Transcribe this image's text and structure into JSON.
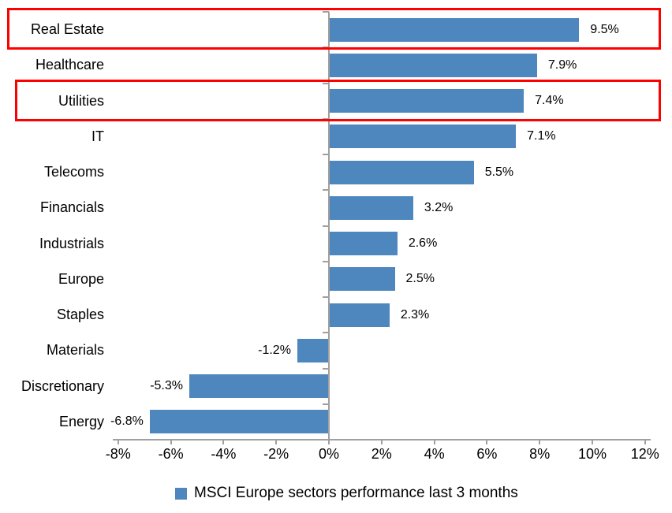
{
  "chart_data": {
    "type": "bar",
    "orientation": "horizontal",
    "categories": [
      "Real Estate",
      "Healthcare",
      "Utilities",
      "IT",
      "Telecoms",
      "Financials",
      "Industrials",
      "Europe",
      "Staples",
      "Materials",
      "Discretionary",
      "Energy"
    ],
    "values": [
      9.5,
      7.9,
      7.4,
      7.1,
      5.5,
      3.2,
      2.6,
      2.5,
      2.3,
      -1.2,
      -5.3,
      -6.8
    ],
    "data_labels": [
      "9.5%",
      "7.9%",
      "7.4%",
      "7.1%",
      "5.5%",
      "3.2%",
      "2.6%",
      "2.5%",
      "2.3%",
      "-1.2%",
      "-5.3%",
      "-6.8%"
    ],
    "x_axis": {
      "min": -8,
      "max": 12,
      "tick_step": 2,
      "tick_labels": [
        "-8%",
        "-6%",
        "-4%",
        "-2%",
        "0%",
        "2%",
        "4%",
        "6%",
        "8%",
        "10%",
        "12%"
      ]
    },
    "grid": "off",
    "legend": {
      "label": "MSCI Europe sectors performance last 3 months",
      "position": "bottom"
    },
    "highlighted_categories": [
      "Real Estate",
      "Utilities"
    ],
    "colors": {
      "bar": "#4E86BE",
      "highlight_border": "#FF0000",
      "axis": "#A0A0A0",
      "text": "#000000"
    }
  }
}
